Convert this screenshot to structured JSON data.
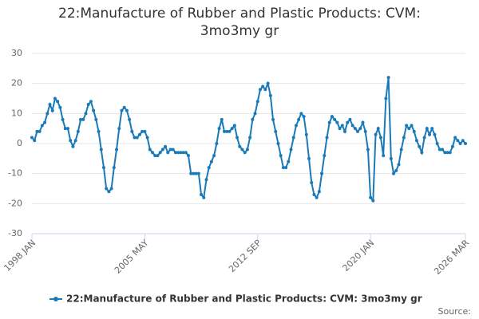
{
  "chart_data": {
    "type": "line",
    "title": "22:Manufacture of Rubber and Plastic Products: CVM: 3mo3my gr",
    "source": "Source:",
    "categories": [
      "1998 JAN",
      null,
      null,
      null,
      null,
      null,
      null,
      null,
      null,
      null,
      null,
      null,
      null,
      null,
      null,
      null,
      null,
      null,
      null,
      null,
      null,
      null,
      null,
      null,
      null,
      null,
      null,
      null,
      null,
      null,
      null,
      null,
      null,
      null,
      null,
      null,
      null,
      null,
      null,
      null,
      null,
      null,
      null,
      null,
      "2005 MAY",
      null,
      null,
      null,
      null,
      null,
      null,
      null,
      null,
      null,
      null,
      null,
      null,
      null,
      null,
      null,
      null,
      null,
      null,
      null,
      null,
      null,
      null,
      null,
      null,
      null,
      null,
      null,
      null,
      null,
      null,
      null,
      null,
      null,
      null,
      null,
      null,
      null,
      null,
      null,
      null,
      null,
      null,
      null,
      "2012 SEP",
      null,
      null,
      null,
      null,
      null,
      null,
      null,
      null,
      null,
      null,
      null,
      null,
      null,
      null,
      null,
      null,
      null,
      null,
      null,
      null,
      null,
      null,
      null,
      null,
      null,
      null,
      null,
      null,
      null,
      null,
      null,
      null,
      null,
      null,
      null,
      null,
      null,
      null,
      null,
      null,
      null,
      null,
      null,
      "2020 JAN",
      null,
      null,
      null,
      null,
      null,
      null,
      null,
      null,
      null,
      null,
      null,
      null,
      null,
      null,
      null,
      null,
      null,
      null,
      null,
      null,
      null,
      null,
      null,
      null,
      null,
      null,
      null,
      null,
      null,
      null,
      null,
      null,
      null,
      null,
      null,
      null,
      "2026 MAR"
    ],
    "series": [
      {
        "name": "22:Manufacture of Rubber and Plastic Products: CVM: 3mo3my gr",
        "color": "#1a7ab8",
        "values": [
          2,
          1,
          4,
          4,
          6,
          7,
          10,
          13,
          11,
          15,
          14,
          12,
          8,
          5,
          5,
          1,
          -1,
          1,
          4,
          8,
          8,
          10,
          13,
          14,
          11,
          8,
          4,
          -2,
          -8,
          -15,
          -16,
          -15,
          -8,
          -2,
          5,
          11,
          12,
          11,
          8,
          4,
          2,
          2,
          3,
          4,
          4,
          2,
          -2,
          -3,
          -4,
          -4,
          -3,
          -2,
          -1,
          -3,
          -2,
          -2,
          -3,
          -3,
          -3,
          -3,
          -3,
          -4,
          -10,
          -10,
          -10,
          -10,
          -17,
          -18,
          -12,
          -8,
          -6,
          -4,
          0,
          5,
          8,
          4,
          4,
          4,
          5,
          6,
          2,
          -1,
          -2,
          -3,
          -2,
          2,
          8,
          10,
          14,
          18,
          19,
          18,
          20,
          16,
          8,
          4,
          0,
          -4,
          -8,
          -8,
          -6,
          -2,
          2,
          6,
          8,
          10,
          9,
          3,
          -5,
          -13,
          -17,
          -18,
          -16,
          -10,
          -4,
          2,
          7,
          9,
          8,
          7,
          5,
          6,
          4,
          7,
          8,
          6,
          5,
          4,
          5,
          7,
          4,
          -2,
          -18,
          -19,
          3,
          5,
          2,
          -4,
          15,
          22,
          -5,
          -10,
          -9,
          -7,
          -2,
          2,
          6,
          5,
          6,
          4,
          1,
          -1,
          -3,
          2,
          5,
          3,
          5,
          3,
          0,
          -2,
          -2,
          -3,
          -3,
          -3,
          -1,
          2,
          1,
          0,
          1,
          0
        ]
      }
    ],
    "ylim": [
      -30,
      30
    ],
    "yticks": [
      -30,
      -20,
      -10,
      0,
      10,
      20,
      30
    ],
    "grid": true
  }
}
